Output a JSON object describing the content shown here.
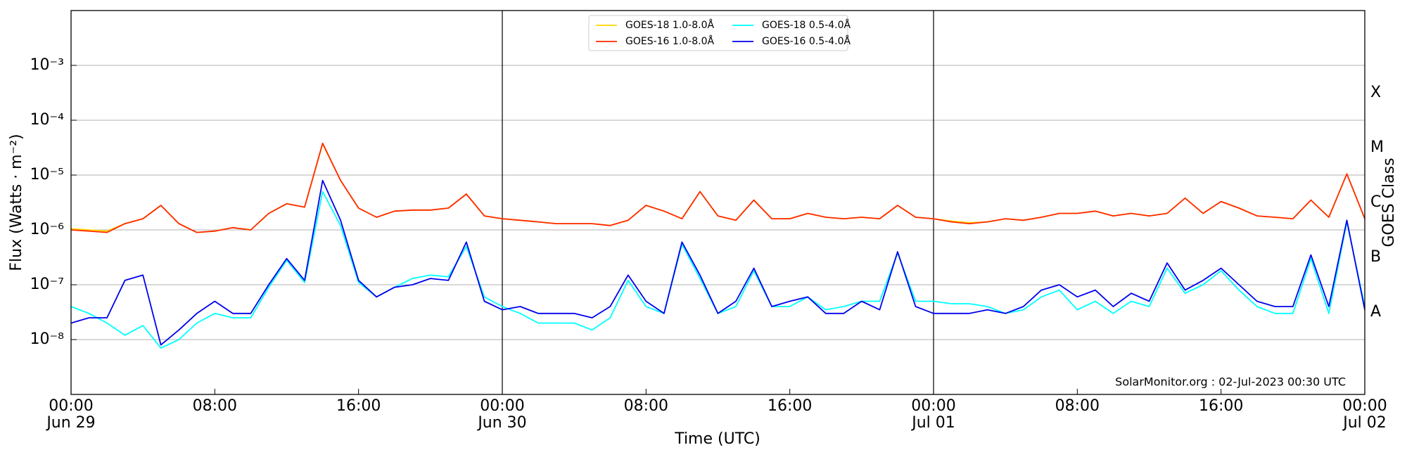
{
  "chart_data": {
    "type": "line",
    "x_label": "Time (UTC)",
    "y_label": "Flux (Watts · m⁻²)",
    "y2_label": "GOES Class",
    "annotation": "SolarMonitor.org : 02-Jul-2023 00:30 UTC",
    "log_y": true,
    "grid": true,
    "legend": "top-center",
    "xlim": [
      "06-29T00:00",
      "07-02T00:00"
    ],
    "xticks": [
      {
        "value": "06-29T00:00",
        "label": "00:00\nJun 29"
      },
      {
        "value": "06-29T08:00",
        "label": "08:00"
      },
      {
        "value": "06-29T16:00",
        "label": "16:00"
      },
      {
        "value": "06-30T00:00",
        "label": "00:00\nJun 30"
      },
      {
        "value": "06-30T08:00",
        "label": "08:00"
      },
      {
        "value": "06-30T16:00",
        "label": "16:00"
      },
      {
        "value": "07-01T00:00",
        "label": "00:00\nJul 01"
      },
      {
        "value": "07-01T08:00",
        "label": "08:00"
      },
      {
        "value": "07-01T16:00",
        "label": "16:00"
      },
      {
        "value": "07-02T00:00",
        "label": "00:00\nJul 02"
      }
    ],
    "vlines": [
      "06-30T00:00",
      "07-01T00:00"
    ],
    "ylim": [
      1e-09,
      0.01
    ],
    "yticks": [
      {
        "value": 1e-08,
        "label": "10⁻⁸"
      },
      {
        "value": 1e-07,
        "label": "10⁻⁷"
      },
      {
        "value": 1e-06,
        "label": "10⁻⁶"
      },
      {
        "value": 1e-05,
        "label": "10⁻⁵"
      },
      {
        "value": 0.0001,
        "label": "10⁻⁴"
      },
      {
        "value": 0.001,
        "label": "10⁻³"
      }
    ],
    "y2lim": [
      1e-09,
      0.01
    ],
    "y2ticks": [
      {
        "value": 3.16e-08,
        "label": "A"
      },
      {
        "value": 3.16e-07,
        "label": "B"
      },
      {
        "value": 3.16e-06,
        "label": "C"
      },
      {
        "value": 3.16e-05,
        "label": "M"
      },
      {
        "value": 0.000316,
        "label": "X"
      }
    ],
    "x": [
      "06-29T00:00",
      "06-29T01:00",
      "06-29T02:00",
      "06-29T03:00",
      "06-29T04:00",
      "06-29T05:00",
      "06-29T06:00",
      "06-29T07:00",
      "06-29T08:00",
      "06-29T09:00",
      "06-29T10:00",
      "06-29T11:00",
      "06-29T12:00",
      "06-29T13:00",
      "06-29T14:00",
      "06-29T15:00",
      "06-29T16:00",
      "06-29T17:00",
      "06-29T18:00",
      "06-29T19:00",
      "06-29T20:00",
      "06-29T21:00",
      "06-29T22:00",
      "06-29T23:00",
      "06-30T00:00",
      "06-30T01:00",
      "06-30T02:00",
      "06-30T03:00",
      "06-30T04:00",
      "06-30T05:00",
      "06-30T06:00",
      "06-30T07:00",
      "06-30T08:00",
      "06-30T09:00",
      "06-30T10:00",
      "06-30T11:00",
      "06-30T12:00",
      "06-30T13:00",
      "06-30T14:00",
      "06-30T15:00",
      "06-30T16:00",
      "06-30T17:00",
      "06-30T18:00",
      "06-30T19:00",
      "06-30T20:00",
      "06-30T21:00",
      "06-30T22:00",
      "06-30T23:00",
      "07-01T00:00",
      "07-01T01:00",
      "07-01T02:00",
      "07-01T03:00",
      "07-01T04:00",
      "07-01T05:00",
      "07-01T06:00",
      "07-01T07:00",
      "07-01T08:00",
      "07-01T09:00",
      "07-01T10:00",
      "07-01T11:00",
      "07-01T12:00",
      "07-01T13:00",
      "07-01T14:00",
      "07-01T15:00",
      "07-01T16:00",
      "07-01T17:00",
      "07-01T18:00",
      "07-01T19:00",
      "07-01T20:00",
      "07-01T21:00",
      "07-01T22:00",
      "07-01T23:00",
      "07-02T00:00"
    ],
    "series": [
      {
        "name": "GOES-18 1.0-8.0Å",
        "color": "#ffd700",
        "values": [
          1.05e-06,
          1e-06,
          9.5e-07,
          1.3e-06,
          1.6e-06,
          2.8e-06,
          1.3e-06,
          9e-07,
          9.5e-07,
          1.1e-06,
          1e-06,
          2e-06,
          3e-06,
          2.6e-06,
          3.7e-05,
          8e-06,
          2.5e-06,
          1.7e-06,
          2.2e-06,
          2.3e-06,
          2.3e-06,
          2.5e-06,
          4.5e-06,
          1.8e-06,
          1.6e-06,
          1.5e-06,
          1.4e-06,
          1.3e-06,
          1.3e-06,
          1.3e-06,
          1.2e-06,
          1.5e-06,
          2.8e-06,
          2.2e-06,
          1.6e-06,
          5e-06,
          1.8e-06,
          1.5e-06,
          3.5e-06,
          1.6e-06,
          1.6e-06,
          2e-06,
          1.7e-06,
          1.6e-06,
          1.7e-06,
          1.6e-06,
          2.8e-06,
          1.7e-06,
          1.6e-06,
          1.45e-06,
          1.35e-06,
          1.4e-06,
          1.6e-06,
          1.5e-06,
          1.7e-06,
          2e-06,
          2e-06,
          2.2e-06,
          1.8e-06,
          2e-06,
          1.8e-06,
          2e-06,
          3.8e-06,
          2e-06,
          3.3e-06,
          2.5e-06,
          1.8e-06,
          1.7e-06,
          1.6e-06,
          3.5e-06,
          1.7e-06,
          1.05e-05,
          1.6e-06
        ]
      },
      {
        "name": "GOES-16 1.0-8.0Å",
        "color": "#ff2a00",
        "values": [
          1e-06,
          9.5e-07,
          9e-07,
          1.3e-06,
          1.6e-06,
          2.8e-06,
          1.3e-06,
          9e-07,
          9.5e-07,
          1.1e-06,
          1e-06,
          2e-06,
          3e-06,
          2.6e-06,
          3.8e-05,
          8e-06,
          2.5e-06,
          1.7e-06,
          2.2e-06,
          2.3e-06,
          2.3e-06,
          2.5e-06,
          4.5e-06,
          1.8e-06,
          1.6e-06,
          1.5e-06,
          1.4e-06,
          1.3e-06,
          1.3e-06,
          1.3e-06,
          1.2e-06,
          1.5e-06,
          2.8e-06,
          2.2e-06,
          1.6e-06,
          5e-06,
          1.8e-06,
          1.5e-06,
          3.5e-06,
          1.6e-06,
          1.6e-06,
          2e-06,
          1.7e-06,
          1.6e-06,
          1.7e-06,
          1.6e-06,
          2.8e-06,
          1.7e-06,
          1.6e-06,
          1.4e-06,
          1.3e-06,
          1.4e-06,
          1.6e-06,
          1.5e-06,
          1.7e-06,
          2e-06,
          2e-06,
          2.2e-06,
          1.8e-06,
          2e-06,
          1.8e-06,
          2e-06,
          3.8e-06,
          2e-06,
          3.3e-06,
          2.5e-06,
          1.8e-06,
          1.7e-06,
          1.6e-06,
          3.5e-06,
          1.7e-06,
          1.05e-05,
          1.6e-06
        ]
      },
      {
        "name": "GOES-18 0.5-4.0Å",
        "color": "#00ffff",
        "values": [
          4e-08,
          3e-08,
          2e-08,
          1.2e-08,
          1.8e-08,
          7e-09,
          1e-08,
          2e-08,
          3e-08,
          2.5e-08,
          2.5e-08,
          9e-08,
          2.8e-07,
          1.1e-07,
          5e-06,
          1.2e-06,
          1.1e-07,
          6e-08,
          9e-08,
          1.3e-07,
          1.5e-07,
          1.4e-07,
          5e-07,
          6e-08,
          4e-08,
          3e-08,
          2e-08,
          2e-08,
          2e-08,
          1.5e-08,
          2.5e-08,
          1.2e-07,
          4e-08,
          3e-08,
          5.5e-07,
          1.3e-07,
          3e-08,
          4e-08,
          1.8e-07,
          4e-08,
          4e-08,
          6e-08,
          3.5e-08,
          4e-08,
          5e-08,
          5e-08,
          3.8e-07,
          5e-08,
          5e-08,
          4.5e-08,
          4.5e-08,
          4e-08,
          3e-08,
          3.5e-08,
          6e-08,
          8e-08,
          3.5e-08,
          5e-08,
          3e-08,
          5e-08,
          4e-08,
          2e-07,
          7e-08,
          1e-07,
          1.8e-07,
          8e-08,
          4e-08,
          3e-08,
          3e-08,
          3e-07,
          3e-08,
          1.4e-06,
          4e-08
        ]
      },
      {
        "name": "GOES-16 0.5-4.0Å",
        "color": "#0000ee",
        "values": [
          2e-08,
          2.5e-08,
          2.5e-08,
          1.2e-07,
          1.5e-07,
          8e-09,
          1.5e-08,
          3e-08,
          5e-08,
          3e-08,
          3e-08,
          1e-07,
          3e-07,
          1.2e-07,
          8e-06,
          1.5e-06,
          1.2e-07,
          6e-08,
          9e-08,
          1e-07,
          1.3e-07,
          1.2e-07,
          6e-07,
          5e-08,
          3.5e-08,
          4e-08,
          3e-08,
          3e-08,
          3e-08,
          2.5e-08,
          4e-08,
          1.5e-07,
          5e-08,
          3e-08,
          6e-07,
          1.5e-07,
          3e-08,
          5e-08,
          2e-07,
          4e-08,
          5e-08,
          6e-08,
          3e-08,
          3e-08,
          5e-08,
          3.5e-08,
          4e-07,
          4e-08,
          3e-08,
          3e-08,
          3e-08,
          3.5e-08,
          3e-08,
          4e-08,
          8e-08,
          1e-07,
          6e-08,
          8e-08,
          4e-08,
          7e-08,
          5e-08,
          2.5e-07,
          8e-08,
          1.2e-07,
          2e-07,
          1e-07,
          5e-08,
          4e-08,
          4e-08,
          3.5e-07,
          4e-08,
          1.5e-06,
          3.5e-08
        ]
      }
    ]
  }
}
